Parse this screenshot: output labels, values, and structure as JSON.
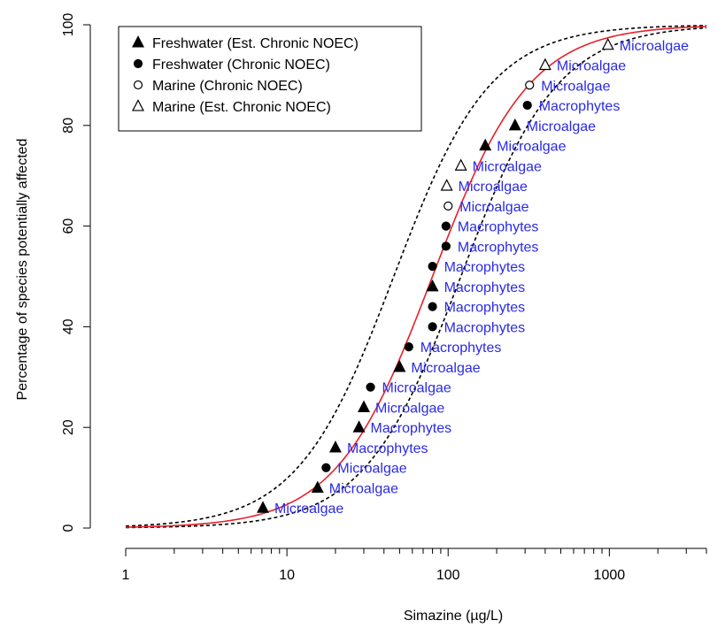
{
  "chart_data": {
    "type": "scatter",
    "xlabel": "Simazine (µg/L)",
    "ylabel": "Percentage of species potentially affected",
    "x_scale": "log",
    "xlim": [
      1,
      4000
    ],
    "ylim": [
      0,
      100
    ],
    "x_ticks": [
      1,
      10,
      100,
      1000
    ],
    "x_tick_labels": [
      "1",
      "10",
      "100",
      "1000"
    ],
    "y_ticks": [
      0,
      20,
      40,
      60,
      80,
      100
    ],
    "y_tick_labels": [
      "0",
      "20",
      "40",
      "60",
      "80",
      "100"
    ],
    "grid": false,
    "legend_position": "top-left",
    "legend": [
      {
        "label": "Freshwater (Est. Chronic NOEC)",
        "marker": "filled-triangle"
      },
      {
        "label": "Freshwater (Chronic NOEC)",
        "marker": "filled-circle"
      },
      {
        "label": "Marine (Chronic NOEC)",
        "marker": "open-circle"
      },
      {
        "label": "Marine (Est. Chronic NOEC)",
        "marker": "open-triangle"
      }
    ],
    "points": [
      {
        "x": 7.1,
        "y": 4,
        "marker": "filled-triangle",
        "label": "Microalgae"
      },
      {
        "x": 15.5,
        "y": 8,
        "marker": "filled-triangle",
        "label": "Microalgae"
      },
      {
        "x": 17.5,
        "y": 12,
        "marker": "filled-circle",
        "label": "Microalgae"
      },
      {
        "x": 20,
        "y": 16,
        "marker": "filled-triangle",
        "label": "Macrophytes"
      },
      {
        "x": 28,
        "y": 20,
        "marker": "filled-triangle",
        "label": "Macrophytes"
      },
      {
        "x": 30,
        "y": 24,
        "marker": "filled-triangle",
        "label": "Microalgae"
      },
      {
        "x": 33,
        "y": 28,
        "marker": "filled-circle",
        "label": "Microalgae"
      },
      {
        "x": 50,
        "y": 32,
        "marker": "filled-triangle",
        "label": "Microalgae"
      },
      {
        "x": 57,
        "y": 36,
        "marker": "filled-circle",
        "label": "Macrophytes"
      },
      {
        "x": 80,
        "y": 40,
        "marker": "filled-circle",
        "label": "Macrophytes"
      },
      {
        "x": 80,
        "y": 44,
        "marker": "filled-circle",
        "label": "Macrophytes"
      },
      {
        "x": 80,
        "y": 48,
        "marker": "filled-triangle",
        "label": "Macrophytes"
      },
      {
        "x": 80,
        "y": 52,
        "marker": "filled-circle",
        "label": "Macrophytes"
      },
      {
        "x": 97,
        "y": 56,
        "marker": "filled-circle",
        "label": "Macrophytes"
      },
      {
        "x": 97,
        "y": 60,
        "marker": "filled-circle",
        "label": "Macrophytes"
      },
      {
        "x": 100,
        "y": 64,
        "marker": "open-circle",
        "label": "Microalgae"
      },
      {
        "x": 98,
        "y": 68,
        "marker": "open-triangle",
        "label": "Microalgae"
      },
      {
        "x": 120,
        "y": 72,
        "marker": "open-triangle",
        "label": "Microalgae"
      },
      {
        "x": 170,
        "y": 76,
        "marker": "filled-triangle",
        "label": "Microalgae"
      },
      {
        "x": 260,
        "y": 80,
        "marker": "filled-triangle",
        "label": "Microalgae"
      },
      {
        "x": 310,
        "y": 84,
        "marker": "filled-circle",
        "label": "Macrophytes"
      },
      {
        "x": 320,
        "y": 88,
        "marker": "open-circle",
        "label": "Microalgae"
      },
      {
        "x": 400,
        "y": 92,
        "marker": "open-triangle",
        "label": "Microalgae"
      },
      {
        "x": 980,
        "y": 96,
        "marker": "open-triangle",
        "label": "Microalgae"
      }
    ],
    "fitted_curve": {
      "type": "log-logistic",
      "center": 80,
      "slope": 1.45,
      "color": "#e8202a"
    },
    "confidence_band": {
      "lower_center": 120,
      "upper_center": 46,
      "slope": 1.45,
      "style": "dashed",
      "color": "#000000"
    },
    "label_color": "#2a2ae6"
  }
}
